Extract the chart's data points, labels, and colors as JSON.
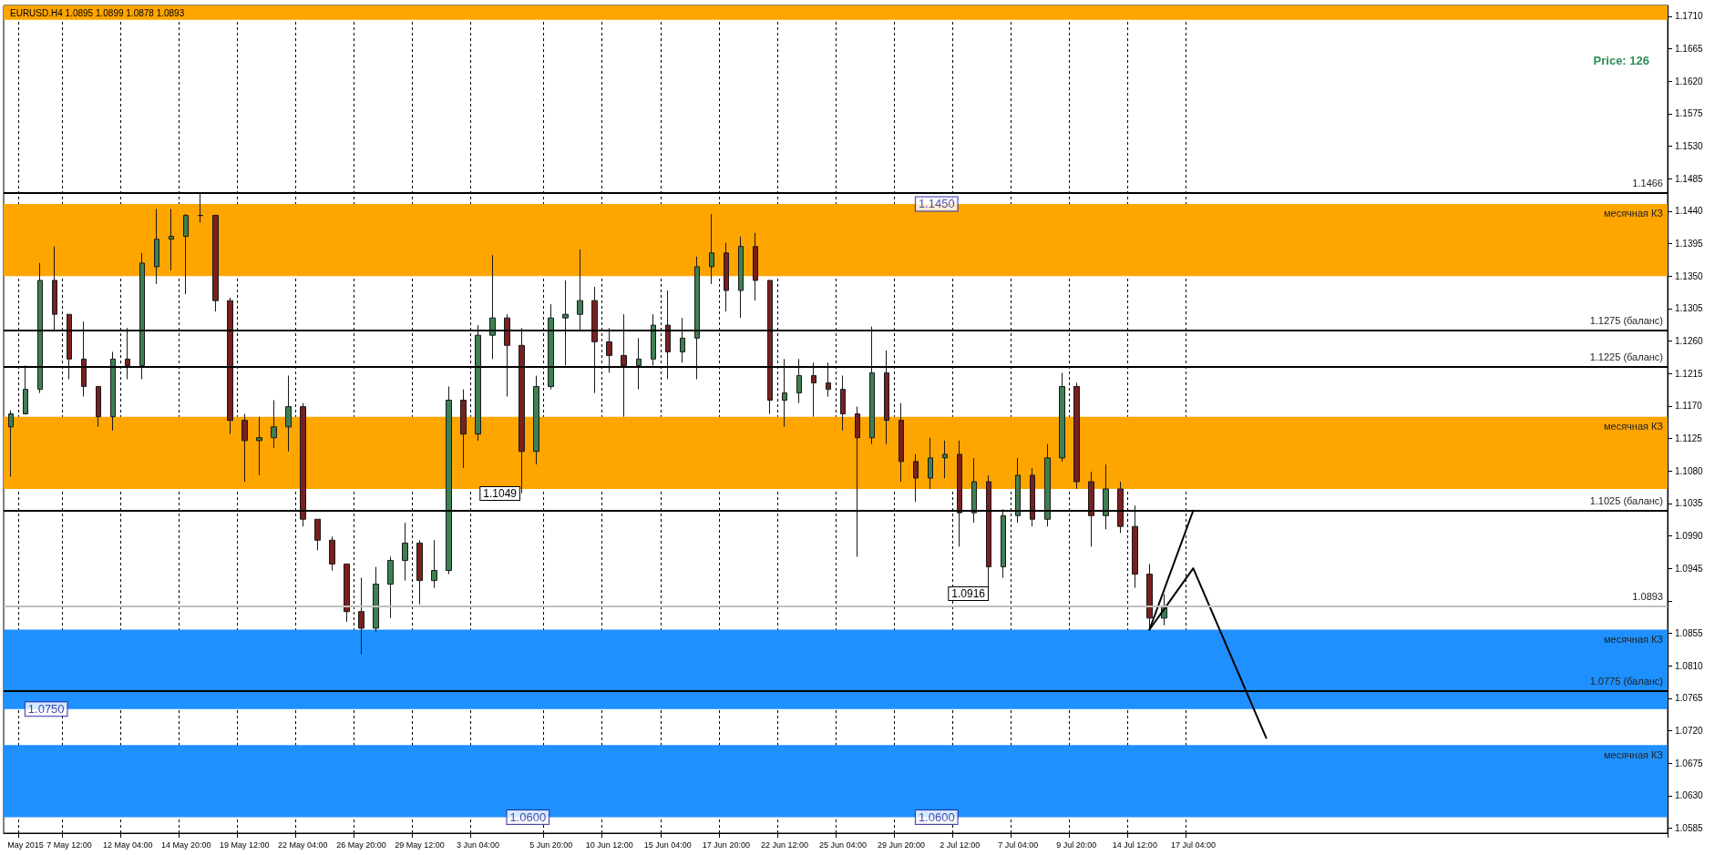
{
  "chart_data": {
    "type": "candlestick",
    "title": "EURUSD.H4 1.0895 1.0899 1.0878 1.0893",
    "categories": [
      null,
      "May 2015",
      null,
      null,
      "7 May 12:00",
      null,
      null,
      null,
      "12 May 04:00",
      null,
      null,
      null,
      "14 May 20:00",
      null,
      null,
      null,
      "19 May 12:00",
      null,
      null,
      null,
      "22 May 04:00",
      null,
      null,
      null,
      "26 May 20:00",
      null,
      null,
      null,
      "29 May 12:00",
      null,
      null,
      null,
      "3 Jun 04:00",
      null,
      null,
      null,
      null,
      "5 Jun 20:00",
      null,
      null,
      null,
      "10 Jun 12:00",
      null,
      null,
      null,
      "15 Jun 04:00",
      null,
      null,
      null,
      "17 Jun 20:00",
      null,
      null,
      null,
      "22 Jun 12:00",
      null,
      null,
      null,
      "25 Jun 04:00",
      null,
      null,
      null,
      "29 Jun 20:00",
      null,
      null,
      null,
      "2 Jul 12:00",
      null,
      null,
      null,
      "7 Jul 04:00",
      null,
      null,
      null,
      "9 Jul 20:00",
      null,
      null,
      null,
      "14 Jul 12:00",
      null,
      null,
      null,
      "17 Jul 04:00",
      null,
      null,
      null,
      null,
      null,
      null,
      null,
      null,
      null,
      null,
      null,
      null,
      null,
      null,
      null,
      null,
      null,
      null,
      null,
      null,
      null,
      null,
      null,
      null,
      null,
      null,
      null,
      null,
      null,
      null,
      null,
      null
    ],
    "ohlc": [
      [
        1.1141,
        1.1164,
        1.1072,
        1.1159
      ],
      [
        1.1159,
        1.1226,
        1.1159,
        1.1193
      ],
      [
        1.1193,
        1.1368,
        1.1188,
        1.1344
      ],
      [
        1.1344,
        1.1391,
        1.1273,
        1.1297
      ],
      [
        1.1297,
        1.1297,
        1.1207,
        1.1235
      ],
      [
        1.1235,
        1.1287,
        1.1183,
        1.1197
      ],
      [
        1.1197,
        1.1197,
        1.1141,
        1.1155
      ],
      [
        1.1155,
        1.1245,
        1.1136,
        1.1235
      ],
      [
        1.1235,
        1.1278,
        1.1207,
        1.1226
      ],
      [
        1.1226,
        1.1382,
        1.1207,
        1.1368
      ],
      [
        1.1363,
        1.1443,
        1.1339,
        1.1401
      ],
      [
        1.1401,
        1.1443,
        1.1358,
        1.1405
      ],
      [
        1.1405,
        1.1436,
        1.1325,
        1.1434
      ],
      [
        1.1434,
        1.1466,
        1.1424,
        1.1434
      ],
      [
        1.1434,
        1.1434,
        1.1301,
        1.1316
      ],
      [
        1.1316,
        1.132,
        1.1131,
        1.115
      ],
      [
        1.115,
        1.1159,
        1.1065,
        1.1122
      ],
      [
        1.1122,
        1.1155,
        1.1074,
        1.1126
      ],
      [
        1.1126,
        1.1178,
        1.1112,
        1.1141
      ],
      [
        1.1141,
        1.1212,
        1.1107,
        1.1169
      ],
      [
        1.1169,
        1.1174,
        1.1003,
        1.1013
      ],
      [
        1.1013,
        1.1013,
        1.097,
        1.0984
      ],
      [
        1.0984,
        1.0989,
        1.0942,
        1.0951
      ],
      [
        1.0951,
        1.0951,
        1.0871,
        1.0885
      ],
      [
        1.0885,
        1.0932,
        1.0826,
        1.0862
      ],
      [
        1.0862,
        1.0947,
        1.0857,
        1.0923
      ],
      [
        1.0923,
        1.0961,
        1.0876,
        1.0956
      ],
      [
        1.0956,
        1.1008,
        1.0928,
        1.098
      ],
      [
        1.098,
        1.0984,
        1.0895,
        1.0928
      ],
      [
        1.0928,
        1.0984,
        1.0918,
        1.0942
      ],
      [
        1.0942,
        1.1197,
        1.0937,
        1.1178
      ],
      [
        1.1178,
        1.1193,
        1.1084,
        1.1131
      ],
      [
        1.1131,
        1.1282,
        1.1122,
        1.1268
      ],
      [
        1.1268,
        1.1379,
        1.1235,
        1.1292
      ],
      [
        1.1292,
        1.1297,
        1.1183,
        1.1254
      ],
      [
        1.1254,
        1.1278,
        1.1049,
        1.1107
      ],
      [
        1.1107,
        1.1212,
        1.1089,
        1.1197
      ],
      [
        1.1197,
        1.1311,
        1.1193,
        1.1292
      ],
      [
        1.1292,
        1.1344,
        1.1226,
        1.1297
      ],
      [
        1.1297,
        1.1387,
        1.1273,
        1.1316
      ],
      [
        1.1316,
        1.1335,
        1.1188,
        1.1259
      ],
      [
        1.1259,
        1.1278,
        1.1216,
        1.124
      ],
      [
        1.124,
        1.1297,
        1.1155,
        1.1226
      ],
      [
        1.1226,
        1.1264,
        1.1193,
        1.1235
      ],
      [
        1.1235,
        1.1297,
        1.1226,
        1.1282
      ],
      [
        1.1282,
        1.133,
        1.1207,
        1.1245
      ],
      [
        1.1245,
        1.1292,
        1.123,
        1.1264
      ],
      [
        1.1264,
        1.1377,
        1.1207,
        1.1363
      ],
      [
        1.1363,
        1.1436,
        1.1339,
        1.1382
      ],
      [
        1.1382,
        1.1396,
        1.1301,
        1.133
      ],
      [
        1.133,
        1.1405,
        1.1292,
        1.1391
      ],
      [
        1.1391,
        1.141,
        1.1316,
        1.1344
      ],
      [
        1.1344,
        1.1344,
        1.1159,
        1.1178
      ],
      [
        1.1178,
        1.1235,
        1.1141,
        1.1188
      ],
      [
        1.1188,
        1.1235,
        1.1174,
        1.1212
      ],
      [
        1.1212,
        1.123,
        1.1155,
        1.1202
      ],
      [
        1.1202,
        1.123,
        1.1183,
        1.1193
      ],
      [
        1.1193,
        1.1212,
        1.1136,
        1.1159
      ],
      [
        1.1159,
        1.1169,
        1.0961,
        1.1126
      ],
      [
        1.1126,
        1.128,
        1.1117,
        1.1216
      ],
      [
        1.1216,
        1.1247,
        1.1117,
        1.115
      ],
      [
        1.115,
        1.1174,
        1.1065,
        1.1093
      ],
      [
        1.1093,
        1.1103,
        1.1037,
        1.107
      ],
      [
        1.107,
        1.1126,
        1.1055,
        1.1098
      ],
      [
        1.1098,
        1.1122,
        1.107,
        1.1103
      ],
      [
        1.1103,
        1.1122,
        1.0975,
        1.1022
      ],
      [
        1.1022,
        1.1098,
        1.1008,
        1.1065
      ],
      [
        1.1065,
        1.1074,
        1.0916,
        1.0947
      ],
      [
        1.0947,
        1.1027,
        1.0932,
        1.1018
      ],
      [
        1.1018,
        1.1098,
        1.1008,
        1.1074
      ],
      [
        1.1074,
        1.1084,
        1.1003,
        1.1013
      ],
      [
        1.1013,
        1.1117,
        1.1003,
        1.1098
      ],
      [
        1.1098,
        1.1216,
        1.1093,
        1.1197
      ],
      [
        1.1197,
        1.1202,
        1.1055,
        1.1065
      ],
      [
        1.1065,
        1.1079,
        1.0975,
        1.1018
      ],
      [
        1.1018,
        1.1089,
        1.0999,
        1.1055
      ],
      [
        1.1055,
        1.1065,
        1.0994,
        1.1003
      ],
      [
        1.1003,
        1.1032,
        1.0918,
        1.0937
      ],
      [
        1.0937,
        1.0951,
        1.0862,
        1.0876
      ],
      [
        1.0876,
        1.0909,
        1.0866,
        1.0893
      ],
      null,
      null,
      null,
      null,
      null,
      null,
      null,
      null,
      null,
      null,
      null,
      null,
      null,
      null,
      null,
      null,
      null,
      null,
      null,
      null,
      null,
      null,
      null,
      null,
      null,
      null,
      null,
      null,
      null,
      null,
      null,
      null,
      null,
      null
    ],
    "series": [
      {
        "type": "line",
        "color": "#000000",
        "values": [
          null,
          null,
          null,
          null,
          null,
          null,
          null,
          null,
          null,
          null,
          null,
          null,
          null,
          null,
          null,
          null,
          null,
          null,
          null,
          null,
          null,
          null,
          null,
          null,
          null,
          null,
          null,
          null,
          null,
          null,
          null,
          null,
          null,
          null,
          null,
          null,
          null,
          null,
          null,
          null,
          null,
          null,
          null,
          null,
          null,
          null,
          null,
          null,
          null,
          null,
          null,
          null,
          null,
          null,
          null,
          null,
          null,
          null,
          null,
          null,
          null,
          null,
          null,
          null,
          null,
          null,
          null,
          null,
          null,
          null,
          null,
          null,
          null,
          null,
          null,
          null,
          null,
          null,
          1.086,
          null,
          null,
          1.1025,
          null,
          null,
          null,
          null,
          null,
          null,
          null,
          null,
          null,
          null,
          null,
          null,
          null,
          null,
          null,
          null,
          null,
          null,
          null,
          null,
          null,
          null,
          null,
          null,
          null,
          null,
          null,
          null,
          null,
          null,
          null,
          null
        ]
      },
      {
        "type": "line",
        "color": "#000000",
        "values": [
          null,
          null,
          null,
          null,
          null,
          null,
          null,
          null,
          null,
          null,
          null,
          null,
          null,
          null,
          null,
          null,
          null,
          null,
          null,
          null,
          null,
          null,
          null,
          null,
          null,
          null,
          null,
          null,
          null,
          null,
          null,
          null,
          null,
          null,
          null,
          null,
          null,
          null,
          null,
          null,
          null,
          null,
          null,
          null,
          null,
          null,
          null,
          null,
          null,
          null,
          null,
          null,
          null,
          null,
          null,
          null,
          null,
          null,
          null,
          null,
          null,
          null,
          null,
          null,
          null,
          null,
          null,
          null,
          null,
          null,
          null,
          null,
          null,
          null,
          null,
          null,
          null,
          null,
          1.086,
          null,
          null,
          1.0945,
          null,
          null,
          null,
          null,
          1.071,
          null,
          null,
          null,
          null,
          null,
          null,
          null,
          null,
          null,
          null,
          null,
          null,
          null,
          null,
          null,
          null,
          null,
          null,
          null,
          null,
          null,
          null,
          null,
          null,
          null,
          null,
          null
        ]
      }
    ],
    "ylim": [
      1.0578,
      1.1725
    ],
    "yticks": [
      1.0585,
      {
        "value": 1.063,
        "label": "1.0630"
      },
      1.0675,
      {
        "value": 1.072,
        "label": "1.0720"
      },
      1.0765,
      {
        "value": 1.081,
        "label": "1.0810"
      },
      1.0855,
      {
        "value": 1.09,
        "label": null
      },
      1.0945,
      {
        "value": 1.099,
        "label": "1.0990"
      },
      1.1035,
      {
        "value": 1.108,
        "label": "1.1080"
      },
      1.1125,
      {
        "value": 1.117,
        "label": "1.1170"
      },
      1.1215,
      {
        "value": 1.126,
        "label": "1.1260"
      },
      1.1305,
      {
        "value": 1.135,
        "label": "1.1350"
      },
      1.1395,
      {
        "value": 1.144,
        "label": "1.1440"
      },
      1.1485,
      {
        "value": 1.153,
        "label": "1.1530"
      },
      1.1575,
      {
        "value": 1.162,
        "label": "1.1620"
      },
      1.1665,
      {
        "value": 1.171,
        "label": "1.1710"
      }
    ],
    "grid": "x",
    "marker": "none",
    "line_style": "solid",
    "ref_lines": [
      {
        "axis": "y",
        "value": 1.1466,
        "label": "1.1466",
        "color": "#000000"
      },
      {
        "axis": "y",
        "value": 1.1275,
        "label": "1.1275 (баланс)",
        "color": "#000000"
      },
      {
        "axis": "y",
        "value": 1.1225,
        "label": "1.1225 (баланс)",
        "color": "#000000"
      },
      {
        "axis": "y",
        "value": 1.1025,
        "label": "1.1025 (баланс)",
        "color": "#000000"
      },
      {
        "axis": "y",
        "value": 1.0775,
        "label": "1.0775 (баланс)",
        "color": "#000000"
      },
      {
        "axis": "y",
        "value": 1.0893,
        "label": "1.0893",
        "color": "#c0c0c0"
      }
    ],
    "bands": [
      {
        "axis": "y",
        "from": 1.1705,
        "to": 1.1725,
        "color": "#ffa500"
      },
      {
        "axis": "y",
        "from": 1.135,
        "to": 1.145,
        "label": "месячная КЗ",
        "color": "#ffa500"
      },
      {
        "axis": "y",
        "from": 1.1055,
        "to": 1.1155,
        "label": "месячная КЗ",
        "color": "#ffa500"
      },
      {
        "axis": "y",
        "from": 1.075,
        "to": 1.086,
        "label": "месячная КЗ",
        "color": "#1e90ff"
      },
      {
        "axis": "y",
        "from": 1.06,
        "to": 1.07,
        "label": "месячная КЗ",
        "color": "#1e90ff"
      }
    ],
    "annotations": [
      "Price: 126",
      {
        "text": "1.1450",
        "x": "2 Jul 12:00",
        "y": 1.145
      },
      {
        "text": "1.0750",
        "x": "7 May 12:00",
        "y": 1.075
      },
      {
        "text": "1.0600",
        "x": "5 Jun 20:00",
        "y": 1.06
      },
      {
        "text": "1.0600",
        "x": "2 Jul 12:00",
        "y": 1.06
      },
      "1.1049",
      "1.0916"
    ]
  }
}
